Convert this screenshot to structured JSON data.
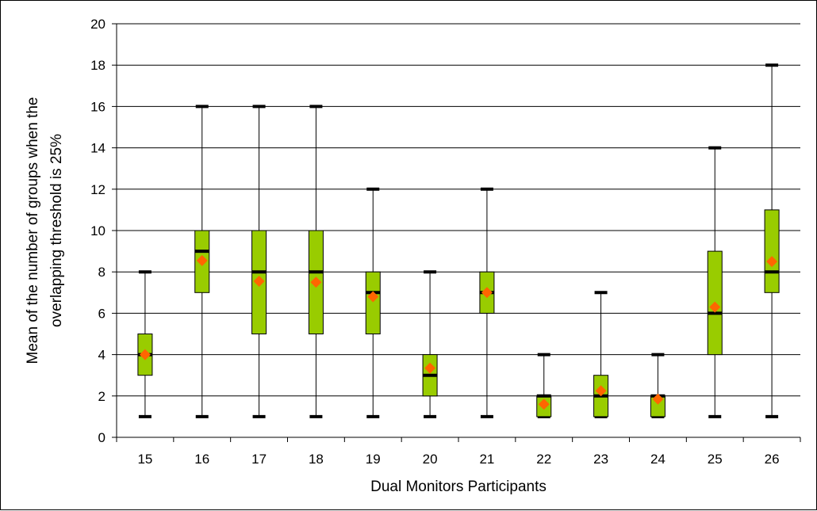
{
  "chart_data": {
    "type": "boxplot",
    "title": "",
    "xlabel": "Dual Monitors Participants",
    "ylabel_lines": [
      "Mean of the number of groups when the",
      "overlapping threshold is 25%"
    ],
    "ylim": [
      0,
      20
    ],
    "yticks": [
      0,
      2,
      4,
      6,
      8,
      10,
      12,
      14,
      16,
      18,
      20
    ],
    "grid": "horizontal",
    "categories": [
      "15",
      "16",
      "17",
      "18",
      "19",
      "20",
      "21",
      "22",
      "23",
      "24",
      "25",
      "26"
    ],
    "boxes": [
      {
        "category": "15",
        "min": 1,
        "q1": 3,
        "median": 4,
        "q3": 5,
        "max": 8,
        "mean": 4.0
      },
      {
        "category": "16",
        "min": 1,
        "q1": 7,
        "median": 9,
        "q3": 10,
        "max": 16,
        "mean": 8.55
      },
      {
        "category": "17",
        "min": 1,
        "q1": 5,
        "median": 8,
        "q3": 10,
        "max": 16,
        "mean": 7.55
      },
      {
        "category": "18",
        "min": 1,
        "q1": 5,
        "median": 8,
        "q3": 10,
        "max": 16,
        "mean": 7.5
      },
      {
        "category": "19",
        "min": 1,
        "q1": 5,
        "median": 7,
        "q3": 8,
        "max": 12,
        "mean": 6.8
      },
      {
        "category": "20",
        "min": 1,
        "q1": 2,
        "median": 3,
        "q3": 4,
        "max": 8,
        "mean": 3.35
      },
      {
        "category": "21",
        "min": 1,
        "q1": 6,
        "median": 7,
        "q3": 8,
        "max": 12,
        "mean": 7.0
      },
      {
        "category": "22",
        "min": 1,
        "q1": 1,
        "median": 2,
        "q3": 2,
        "max": 4,
        "mean": 1.6
      },
      {
        "category": "23",
        "min": 1,
        "q1": 1,
        "median": 2,
        "q3": 3,
        "max": 7,
        "mean": 2.25
      },
      {
        "category": "24",
        "min": 1,
        "q1": 1,
        "median": 2,
        "q3": 2,
        "max": 4,
        "mean": 1.85
      },
      {
        "category": "25",
        "min": 1,
        "q1": 4,
        "median": 6,
        "q3": 9,
        "max": 14,
        "mean": 6.3
      },
      {
        "category": "26",
        "min": 1,
        "q1": 7,
        "median": 8,
        "q3": 11,
        "max": 18,
        "mean": 8.5
      }
    ],
    "colors": {
      "box_fill": "#99cc00",
      "box_stroke": "#000000",
      "mean_marker": "#ff6600",
      "gridline": "#000000",
      "whisker": "#000000"
    }
  }
}
